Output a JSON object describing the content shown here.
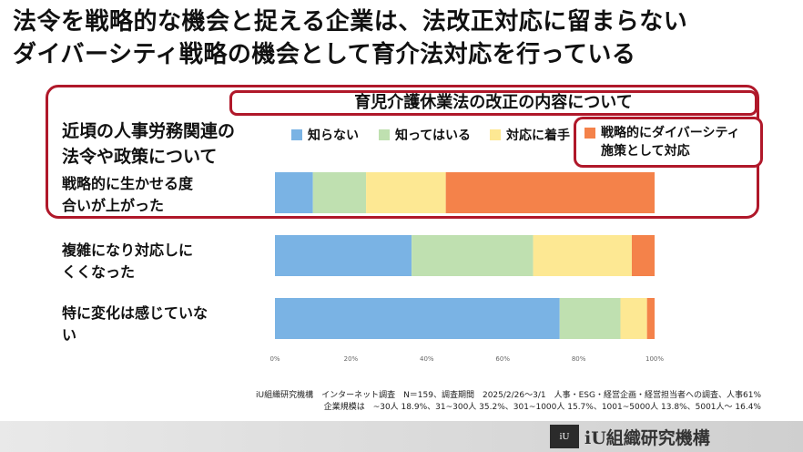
{
  "headline": {
    "line1": "法令を戦略的な機会と捉える企業は、法改正対応に留まらない",
    "line2": "ダイバーシティ戦略の機会として育介法対応を行っている"
  },
  "subtitle": "育児介護休業法の改正の内容について",
  "question": {
    "line1": "近頃の人事労務関連の",
    "line2": "法令や政策について"
  },
  "colors": {
    "unknown": "#7ab3e4",
    "known": "#bfe0b0",
    "started": "#fde893",
    "strategic": "#f4824a",
    "accent_border": "#b0182a"
  },
  "chart_data": {
    "type": "bar",
    "orientation": "horizontal",
    "stacked": true,
    "normalized": true,
    "categories": [
      [
        "戦略的に生かせる度",
        "合いが上がった"
      ],
      [
        "複雑になり対応しに",
        "くくなった"
      ],
      [
        "特に変化は感じていな",
        "い"
      ]
    ],
    "series": [
      {
        "name": "知らない",
        "color": "#7ab3e4",
        "values": [
          10,
          36,
          75
        ]
      },
      {
        "name": "知ってはいる",
        "color": "#bfe0b0",
        "values": [
          14,
          32,
          16
        ]
      },
      {
        "name": "対応に着手",
        "color": "#fde893",
        "values": [
          21,
          26,
          7
        ]
      },
      {
        "name": [
          "戦略的にダイバーシティ",
          "施策として対応"
        ],
        "color": "#f4824a",
        "values": [
          55,
          6,
          2
        ]
      }
    ],
    "xlim": [
      0,
      100
    ],
    "xticks": [
      "0%",
      "20%",
      "40%",
      "60%",
      "80%",
      "100%"
    ],
    "grid": false,
    "legend": "top"
  },
  "footnotes": {
    "line1": "iU組織研究機構　インターネット調査　N＝159、調査期間　2025/2/26～3/1　人事・ESG・経営企画・経営担当者への調査、人事61%",
    "line2": "企業規模は　~30人 18.9%、31~300人 35.2%、301~1000人 15.7%、1001~5000人 13.8%、5001人～ 16.4%"
  },
  "brand": {
    "logo": "iU",
    "name": "iU組織研究機構"
  }
}
